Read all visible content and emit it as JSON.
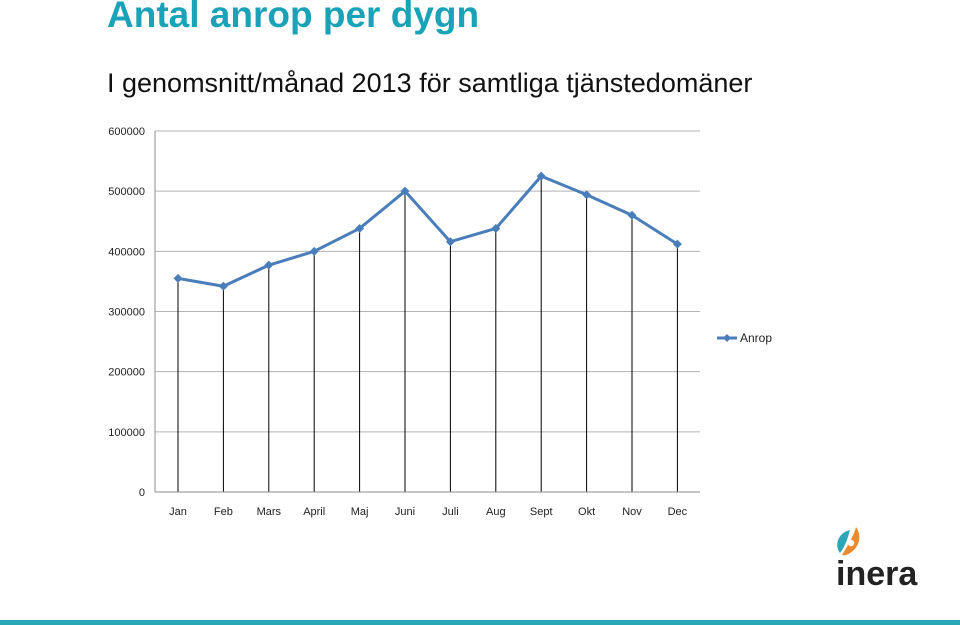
{
  "header": {
    "title": "Antal anrop per dygn",
    "subtitle": "I genomsnitt/månad 2013 för samtliga tjänstedomäner"
  },
  "chart_data": {
    "type": "line",
    "categories": [
      "Jan",
      "Feb",
      "Mars",
      "April",
      "Maj",
      "Juni",
      "Juli",
      "Aug",
      "Sept",
      "Okt",
      "Nov",
      "Dec"
    ],
    "series": [
      {
        "name": "Anrop",
        "values": [
          355000,
          342000,
          377000,
          400000,
          438000,
          500000,
          416000,
          438000,
          525000,
          494000,
          460000,
          412000
        ],
        "color": "#4a7ebb"
      }
    ],
    "ylim": [
      0,
      600000
    ],
    "yticks": [
      0,
      100000,
      200000,
      300000,
      400000,
      500000,
      600000
    ],
    "ytick_labels": [
      "0",
      "100000",
      "200000",
      "300000",
      "400000",
      "500000",
      "600000"
    ],
    "grid": true,
    "drop_lines": true,
    "legend_position": "right"
  },
  "logo": {
    "text": "inera",
    "colors": {
      "text": "#222222",
      "teal": "#2aa7b6",
      "orange": "#ee8a2e"
    }
  },
  "theme": {
    "accent": "#1aa3b8",
    "bar": "#2aa7b6"
  }
}
